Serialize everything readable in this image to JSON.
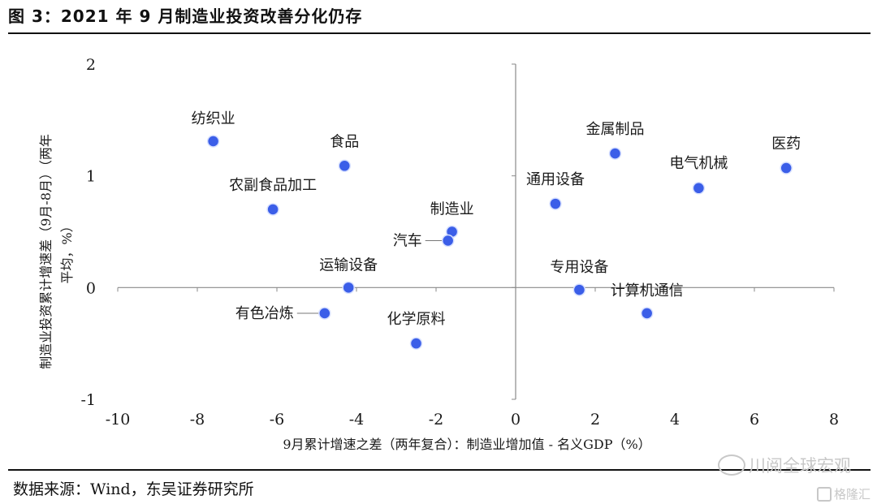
{
  "header": {
    "title": "图 3：2021 年 9 月制造业投资改善分化仍存"
  },
  "footer": {
    "source": "数据来源：Wind，东吴证券研究所",
    "watermark": "川阅全球宏观",
    "brand": "格隆汇"
  },
  "chart_data": {
    "type": "scatter",
    "xlabel": "9月累计增速之差（两年复合）：制造业增加值 - 名义GDP（%）",
    "ylabel_line1": "制造业投资累计增速差（9月-8月）（两年",
    "ylabel_line2": "平均，%）",
    "xlim": [
      -10,
      8
    ],
    "ylim": [
      -1,
      2
    ],
    "xticks": [
      -10,
      -8,
      -6,
      -4,
      -2,
      0,
      2,
      4,
      6,
      8
    ],
    "yticks": [
      -1,
      0,
      1,
      2
    ],
    "axes_cross": [
      0,
      0
    ],
    "marker_color": "#3b5ee8",
    "points": [
      {
        "label": "纺织业",
        "x": -7.6,
        "y": 1.31
      },
      {
        "label": "食品",
        "x": -4.3,
        "y": 1.09
      },
      {
        "label": "农副食品加工",
        "x": -6.1,
        "y": 0.7
      },
      {
        "label": "制造业",
        "x": -1.6,
        "y": 0.5
      },
      {
        "label": "汽车",
        "x": -1.7,
        "y": 0.42
      },
      {
        "label": "运输设备",
        "x": -4.2,
        "y": 0.0
      },
      {
        "label": "有色冶炼",
        "x": -4.8,
        "y": -0.23
      },
      {
        "label": "化学原料",
        "x": -2.5,
        "y": -0.5
      },
      {
        "label": "金属制品",
        "x": 2.5,
        "y": 1.2
      },
      {
        "label": "医药",
        "x": 6.8,
        "y": 1.07
      },
      {
        "label": "电气机械",
        "x": 4.6,
        "y": 0.89
      },
      {
        "label": "通用设备",
        "x": 1.0,
        "y": 0.75
      },
      {
        "label": "专用设备",
        "x": 1.6,
        "y": -0.02
      },
      {
        "label": "计算机通信",
        "x": 3.3,
        "y": -0.23
      }
    ]
  }
}
